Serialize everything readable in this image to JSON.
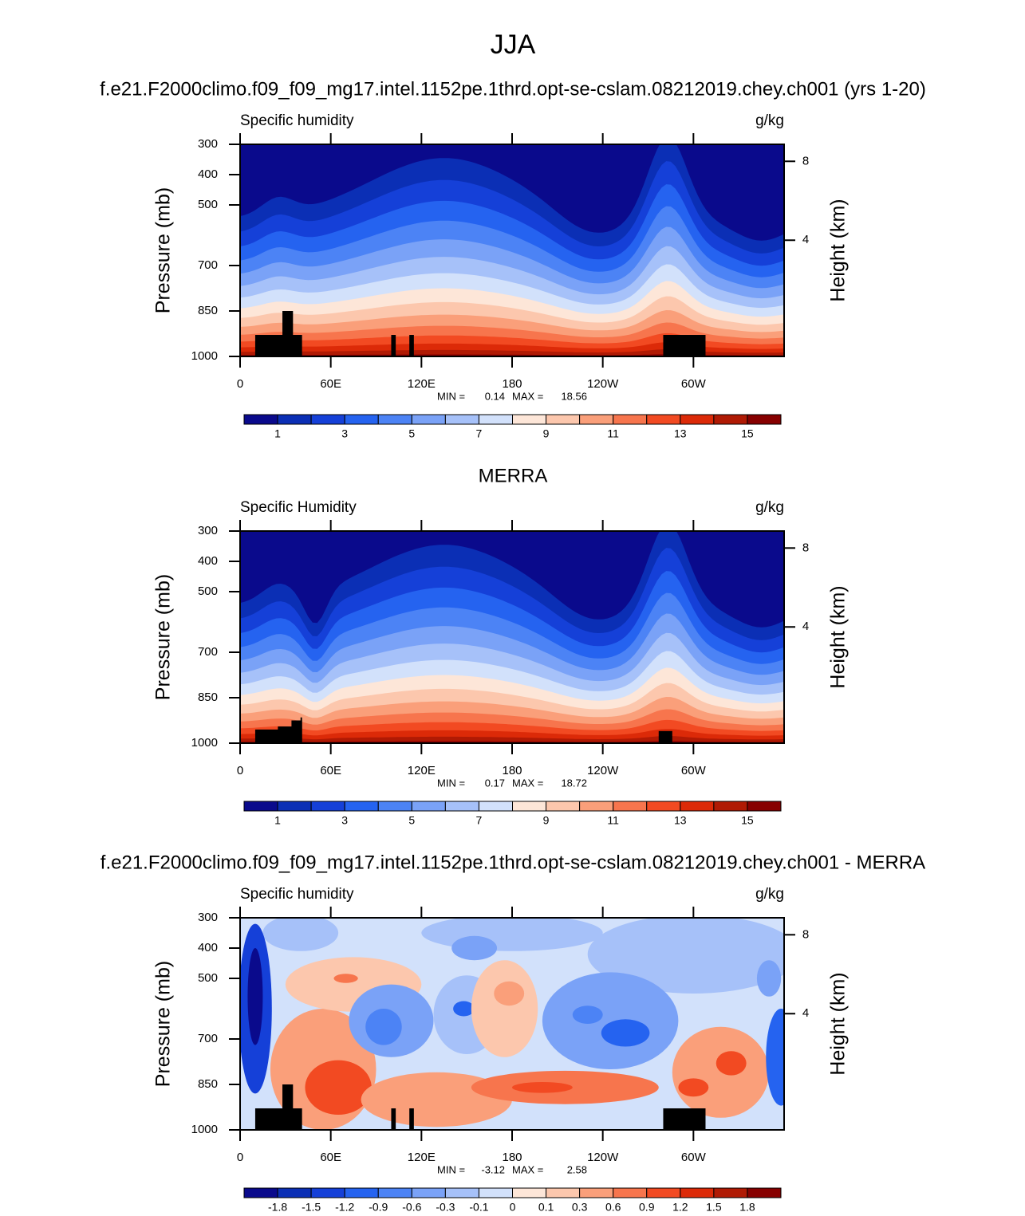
{
  "title": "JJA",
  "chart_data": [
    {
      "type": "contour",
      "title": "f.e21.F2000climo.f09_f09_mg17.intel.1152pe.1thrd.opt-se-cslam.08212019.chey.ch001 (yrs 1-20)",
      "left_label": "Specific humidity",
      "right_label": "g/kg",
      "ylabel": "Pressure (mb)",
      "y2label": "Height (km)",
      "xlim": [
        0,
        360
      ],
      "xticks": [
        0,
        {
          "value": 60,
          "label": "60E"
        },
        {
          "value": 120,
          "label": "120E"
        },
        180,
        {
          "value": 240,
          "label": "120W"
        },
        {
          "value": 300,
          "label": "60W"
        }
      ],
      "ylim": [
        1000,
        300
      ],
      "yticks": [
        300,
        400,
        500,
        700,
        850,
        1000
      ],
      "y2_scale": "standard-atmosphere",
      "y2ticks": [
        4,
        8
      ],
      "min_label": "MIN =",
      "min": 0.14,
      "max_label": "MAX =",
      "max": 18.56,
      "colorbar": {
        "colors": [
          "#0a0a8c",
          "#0b2fb5",
          "#1540d8",
          "#2563f0",
          "#4c83f5",
          "#7aa2f7",
          "#a6c1f9",
          "#d2e1fb",
          "#fde6d8",
          "#fcc7ad",
          "#fa9f7a",
          "#f7754d",
          "#f24a22",
          "#dc2a08",
          "#b01a04",
          "#870000"
        ],
        "levels": [
          1,
          null,
          3,
          null,
          5,
          null,
          7,
          null,
          9,
          null,
          11,
          null,
          13,
          null,
          15
        ]
      }
    },
    {
      "type": "contour",
      "title": "MERRA",
      "left_label": "Specific Humidity",
      "right_label": "g/kg",
      "ylabel": "Pressure (mb)",
      "y2label": "Height (km)",
      "xlim": [
        0,
        360
      ],
      "xticks": [
        0,
        {
          "value": 60,
          "label": "60E"
        },
        {
          "value": 120,
          "label": "120E"
        },
        180,
        {
          "value": 240,
          "label": "120W"
        },
        {
          "value": 300,
          "label": "60W"
        }
      ],
      "ylim": [
        1000,
        300
      ],
      "yticks": [
        300,
        400,
        500,
        700,
        850,
        1000
      ],
      "y2_scale": "standard-atmosphere",
      "y2ticks": [
        4,
        8
      ],
      "min_label": "MIN =",
      "min": 0.17,
      "max_label": "MAX =",
      "max": 18.72,
      "colorbar": {
        "colors": [
          "#0a0a8c",
          "#0b2fb5",
          "#1540d8",
          "#2563f0",
          "#4c83f5",
          "#7aa2f7",
          "#a6c1f9",
          "#d2e1fb",
          "#fde6d8",
          "#fcc7ad",
          "#fa9f7a",
          "#f7754d",
          "#f24a22",
          "#dc2a08",
          "#b01a04",
          "#870000"
        ],
        "levels": [
          1,
          null,
          3,
          null,
          5,
          null,
          7,
          null,
          9,
          null,
          11,
          null,
          13,
          null,
          15
        ]
      }
    },
    {
      "type": "contour-difference",
      "title": "f.e21.F2000climo.f09_f09_mg17.intel.1152pe.1thrd.opt-se-cslam.08212019.chey.ch001 - MERRA",
      "left_label": "Specific humidity",
      "right_label": "g/kg",
      "ylabel": "Pressure (mb)",
      "y2label": "Height (km)",
      "xlim": [
        0,
        360
      ],
      "xticks": [
        0,
        {
          "value": 60,
          "label": "60E"
        },
        {
          "value": 120,
          "label": "120E"
        },
        180,
        {
          "value": 240,
          "label": "120W"
        },
        {
          "value": 300,
          "label": "60W"
        }
      ],
      "ylim": [
        1000,
        300
      ],
      "yticks": [
        300,
        400,
        500,
        700,
        850,
        1000
      ],
      "y2_scale": "standard-atmosphere",
      "y2ticks": [
        4,
        8
      ],
      "min_label": "MIN =",
      "min": -3.12,
      "max_label": "MAX =",
      "max": 2.58,
      "colorbar": {
        "colors": [
          "#0a0a8c",
          "#0b2fb5",
          "#1540d8",
          "#2563f0",
          "#4c83f5",
          "#7aa2f7",
          "#a6c1f9",
          "#d2e1fb",
          "#fde6d8",
          "#fcc7ad",
          "#fa9f7a",
          "#f7754d",
          "#f24a22",
          "#dc2a08",
          "#b01a04",
          "#870000"
        ],
        "levels": [
          -1.8,
          -1.5,
          -1.2,
          -0.9,
          -0.6,
          -0.3,
          -0.1,
          0,
          0.1,
          0.3,
          0.6,
          0.9,
          1.2,
          1.5,
          1.8
        ]
      }
    }
  ]
}
